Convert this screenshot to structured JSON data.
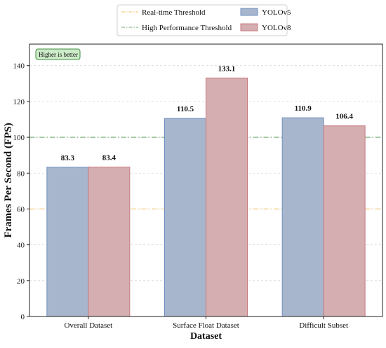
{
  "chart_data": {
    "type": "bar",
    "categories": [
      "Overall Dataset",
      "Surface Float Dataset",
      "Difficult Subset"
    ],
    "series": [
      {
        "name": "YOLOv5",
        "values": [
          83.3,
          110.5,
          110.9
        ],
        "fill": "#a7b6cd",
        "stroke": "#6f8fc0"
      },
      {
        "name": "YOLOv8",
        "values": [
          83.4,
          133.1,
          106.4
        ],
        "fill": "#d4aeb0",
        "stroke": "#c97a80"
      }
    ],
    "data_labels": [
      [
        "83.3",
        "110.5",
        "110.9"
      ],
      [
        "83.4",
        "133.1",
        "106.4"
      ]
    ],
    "xlabel": "Dataset",
    "ylabel": "Frames Per Second (FPS)",
    "ylim": [
      0,
      152
    ],
    "yticks": [
      0,
      20,
      40,
      60,
      80,
      100,
      120,
      140
    ],
    "grid": "y-dashed",
    "reference_lines": [
      {
        "name": "Real-time Threshold",
        "value": 60,
        "color": "#f2c062",
        "style": "dash-dot"
      },
      {
        "name": "High Performance Threshold",
        "value": 100,
        "color": "#6aa86a",
        "style": "dash-dot"
      }
    ],
    "annotation": "Higher is better",
    "annotation_colors": {
      "fill": "#cdebc8",
      "stroke": "#3f8f3f"
    },
    "legend_placement": "top-center-above-plot"
  }
}
